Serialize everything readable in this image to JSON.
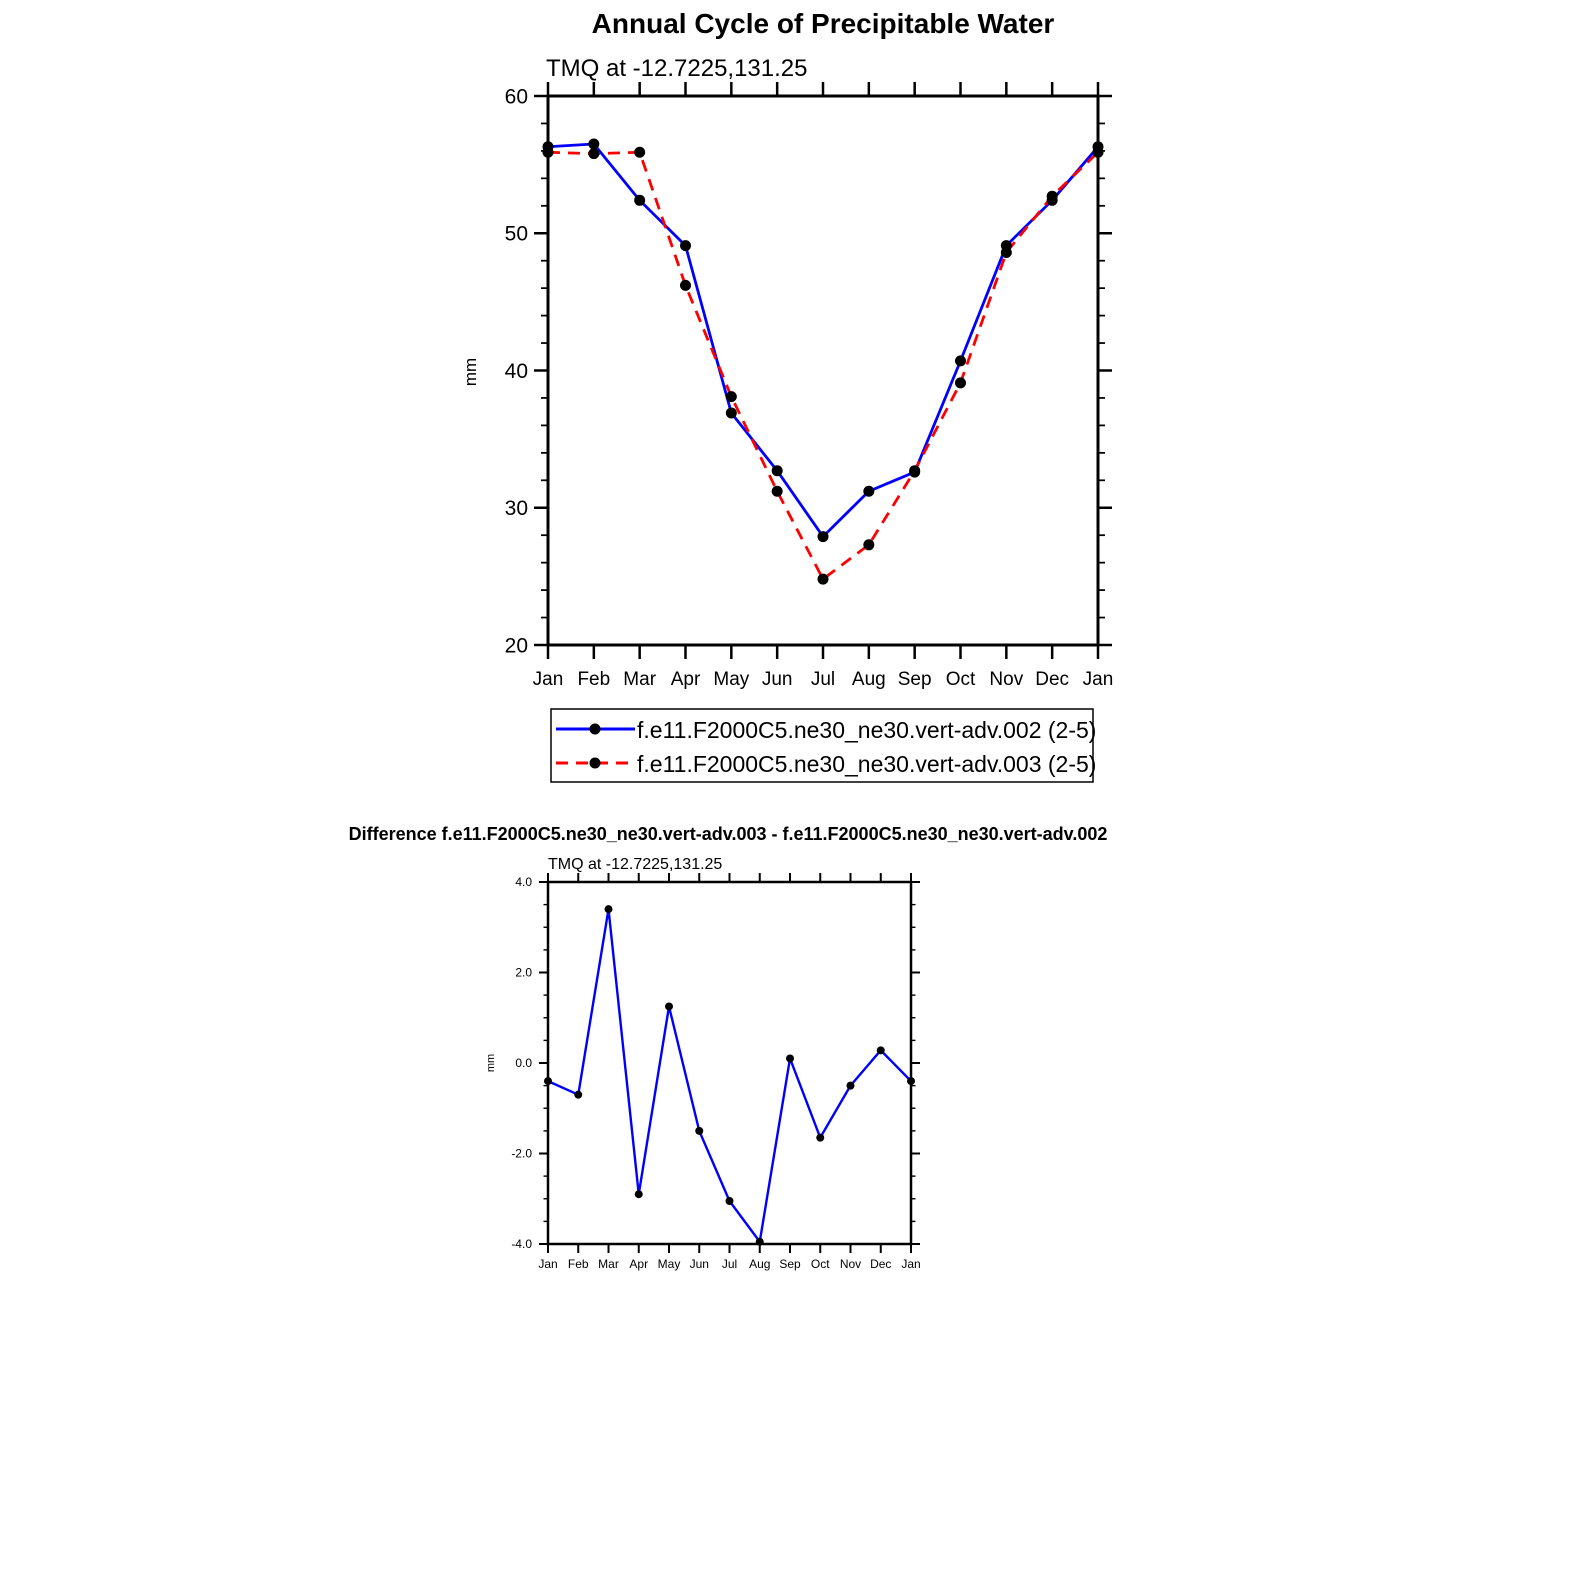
{
  "chart_data": [
    {
      "type": "line",
      "title": "Annual Cycle of Precipitable Water",
      "subtitle": "TMQ at -12.7225,131.25",
      "xlabel": "",
      "ylabel": "mm",
      "categories": [
        "Jan",
        "Feb",
        "Mar",
        "Apr",
        "May",
        "Jun",
        "Jul",
        "Aug",
        "Sep",
        "Oct",
        "Nov",
        "Dec",
        "Jan"
      ],
      "ylim": [
        20,
        60
      ],
      "yticks": [
        "20",
        "30",
        "40",
        "50",
        "60"
      ],
      "grid": false,
      "legend_position": "bottom",
      "series": [
        {
          "name": "f.e11.F2000C5.ne30_ne30.vert-adv.002 (2-5)",
          "color": "#0000ff",
          "style": "solid",
          "values": [
            56.3,
            56.5,
            52.4,
            49.1,
            36.9,
            32.7,
            27.9,
            31.2,
            32.6,
            40.7,
            49.1,
            52.4,
            56.3
          ]
        },
        {
          "name": "f.e11.F2000C5.ne30_ne30.vert-adv.003 (2-5)",
          "color": "#ff0000",
          "style": "dashed",
          "values": [
            55.9,
            55.8,
            55.9,
            46.2,
            38.1,
            31.2,
            24.8,
            27.3,
            32.7,
            39.1,
            48.6,
            52.7,
            55.9
          ]
        }
      ]
    },
    {
      "type": "line",
      "title": "Difference f.e11.F2000C5.ne30_ne30.vert-adv.003 - f.e11.F2000C5.ne30_ne30.vert-adv.002",
      "subtitle": "TMQ at -12.7225,131.25",
      "xlabel": "",
      "ylabel": "mm",
      "categories": [
        "Jan",
        "Feb",
        "Mar",
        "Apr",
        "May",
        "Jun",
        "Jul",
        "Aug",
        "Sep",
        "Oct",
        "Nov",
        "Dec",
        "Jan"
      ],
      "ylim": [
        -4,
        4
      ],
      "yticks": [
        "-4.0",
        "-2.0",
        "0.0",
        "2.0",
        "4.0"
      ],
      "grid": false,
      "series": [
        {
          "name": "difference",
          "color": "#0000ff",
          "style": "solid",
          "values": [
            -0.4,
            -0.7,
            3.4,
            -2.9,
            1.25,
            -1.5,
            -3.05,
            -3.95,
            0.1,
            -1.65,
            -0.5,
            0.28,
            -0.4
          ]
        }
      ]
    }
  ]
}
